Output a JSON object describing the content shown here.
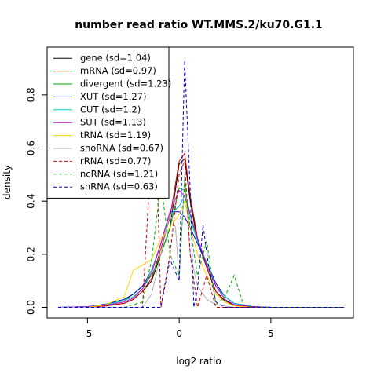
{
  "chart_data": {
    "type": "line",
    "title": "number read ratio WT.MMS.2/ku70.G1.1",
    "xlabel": "log2 ratio",
    "ylabel": "density",
    "xlim": [
      -7.2,
      9.5
    ],
    "ylim": [
      -0.04,
      0.98
    ],
    "x_ticks": [
      -5,
      0,
      5
    ],
    "x_tick_labels": [
      "-5",
      "0",
      "5"
    ],
    "y_ticks": [
      0.0,
      0.2,
      0.4,
      0.6,
      0.8
    ],
    "y_tick_labels": [
      "0.0",
      "0.2",
      "0.4",
      "0.6",
      "0.8"
    ],
    "legend_position": "top-left",
    "series": [
      {
        "name": "gene (sd=1.04)",
        "color": "#000000",
        "dash": "solid",
        "points": [
          [
            -6.6,
            0
          ],
          [
            -5,
            0.001
          ],
          [
            -4,
            0.005
          ],
          [
            -3,
            0.015
          ],
          [
            -2.5,
            0.03
          ],
          [
            -2,
            0.06
          ],
          [
            -1.5,
            0.1
          ],
          [
            -1,
            0.2
          ],
          [
            -0.5,
            0.3
          ],
          [
            0,
            0.54
          ],
          [
            0.3,
            0.56
          ],
          [
            0.6,
            0.4
          ],
          [
            1,
            0.25
          ],
          [
            1.5,
            0.15
          ],
          [
            2,
            0.06
          ],
          [
            2.5,
            0.025
          ],
          [
            3,
            0.01
          ],
          [
            4,
            0.002
          ],
          [
            5,
            0
          ],
          [
            9,
            0
          ]
        ]
      },
      {
        "name": "mRNA (sd=0.97)",
        "color": "#cc0000",
        "dash": "solid",
        "points": [
          [
            -6.6,
            0
          ],
          [
            -5,
            0.001
          ],
          [
            -4,
            0.005
          ],
          [
            -3,
            0.015
          ],
          [
            -2.5,
            0.03
          ],
          [
            -2,
            0.06
          ],
          [
            -1.5,
            0.11
          ],
          [
            -1,
            0.22
          ],
          [
            -0.5,
            0.34
          ],
          [
            0,
            0.55
          ],
          [
            0.3,
            0.58
          ],
          [
            0.6,
            0.42
          ],
          [
            1,
            0.26
          ],
          [
            1.5,
            0.15
          ],
          [
            2,
            0.06
          ],
          [
            2.5,
            0.02
          ],
          [
            3,
            0.008
          ],
          [
            4,
            0.001
          ],
          [
            5,
            0
          ],
          [
            9,
            0
          ]
        ]
      },
      {
        "name": "divergent (sd=1.23)",
        "color": "#00aa00",
        "dash": "solid",
        "points": [
          [
            -6.6,
            0
          ],
          [
            -5,
            0.002
          ],
          [
            -4,
            0.01
          ],
          [
            -3,
            0.025
          ],
          [
            -2.5,
            0.05
          ],
          [
            -2,
            0.08
          ],
          [
            -1.5,
            0.12
          ],
          [
            -1,
            0.2
          ],
          [
            -0.5,
            0.3
          ],
          [
            0,
            0.45
          ],
          [
            0.3,
            0.44
          ],
          [
            0.6,
            0.35
          ],
          [
            1,
            0.25
          ],
          [
            1.5,
            0.16
          ],
          [
            2,
            0.08
          ],
          [
            2.5,
            0.04
          ],
          [
            3,
            0.015
          ],
          [
            4,
            0.003
          ],
          [
            5,
            0
          ],
          [
            9,
            0
          ]
        ]
      },
      {
        "name": "XUT (sd=1.27)",
        "color": "#0000cc",
        "dash": "solid",
        "points": [
          [
            -6.6,
            0
          ],
          [
            -5,
            0.003
          ],
          [
            -4,
            0.012
          ],
          [
            -3,
            0.03
          ],
          [
            -2.5,
            0.05
          ],
          [
            -2,
            0.08
          ],
          [
            -1.5,
            0.14
          ],
          [
            -1,
            0.24
          ],
          [
            -0.5,
            0.36
          ],
          [
            0,
            0.36
          ],
          [
            0.3,
            0.34
          ],
          [
            0.6,
            0.3
          ],
          [
            1,
            0.24
          ],
          [
            1.5,
            0.17
          ],
          [
            2,
            0.09
          ],
          [
            2.5,
            0.04
          ],
          [
            3,
            0.015
          ],
          [
            4,
            0.003
          ],
          [
            5,
            0
          ],
          [
            9,
            0
          ]
        ]
      },
      {
        "name": "CUT (sd=1.2)",
        "color": "#00cccc",
        "dash": "solid",
        "points": [
          [
            -6.6,
            0
          ],
          [
            -5,
            0.003
          ],
          [
            -4,
            0.01
          ],
          [
            -3,
            0.025
          ],
          [
            -2.5,
            0.04
          ],
          [
            -2,
            0.07
          ],
          [
            -1.5,
            0.14
          ],
          [
            -1,
            0.24
          ],
          [
            -0.5,
            0.35
          ],
          [
            0,
            0.38
          ],
          [
            0.3,
            0.42
          ],
          [
            0.6,
            0.33
          ],
          [
            1,
            0.25
          ],
          [
            1.5,
            0.17
          ],
          [
            2,
            0.08
          ],
          [
            2.5,
            0.04
          ],
          [
            3,
            0.015
          ],
          [
            4,
            0.002
          ],
          [
            5,
            0
          ],
          [
            9,
            0
          ]
        ]
      },
      {
        "name": "SUT (sd=1.13)",
        "color": "#cc00cc",
        "dash": "solid",
        "points": [
          [
            -6.6,
            0
          ],
          [
            -5,
            0.002
          ],
          [
            -4,
            0.008
          ],
          [
            -3,
            0.02
          ],
          [
            -2.5,
            0.035
          ],
          [
            -2,
            0.07
          ],
          [
            -1.5,
            0.13
          ],
          [
            -1,
            0.24
          ],
          [
            -0.5,
            0.36
          ],
          [
            0,
            0.44
          ],
          [
            0.3,
            0.42
          ],
          [
            0.6,
            0.35
          ],
          [
            1,
            0.26
          ],
          [
            1.5,
            0.16
          ],
          [
            2,
            0.08
          ],
          [
            2.5,
            0.03
          ],
          [
            3,
            0.01
          ],
          [
            4,
            0.002
          ],
          [
            5,
            0
          ],
          [
            9,
            0
          ]
        ]
      },
      {
        "name": "tRNA (sd=1.19)",
        "color": "#ffd700",
        "dash": "solid",
        "points": [
          [
            -6.6,
            0
          ],
          [
            -5,
            0
          ],
          [
            -4,
            0.01
          ],
          [
            -3,
            0.04
          ],
          [
            -2.5,
            0.14
          ],
          [
            -2,
            0.16
          ],
          [
            -1.5,
            0.18
          ],
          [
            -1,
            0.26
          ],
          [
            -0.5,
            0.3
          ],
          [
            0,
            0.35
          ],
          [
            0.3,
            0.4
          ],
          [
            0.6,
            0.3
          ],
          [
            1,
            0.2
          ],
          [
            1.5,
            0.12
          ],
          [
            2,
            0.05
          ],
          [
            2.5,
            0.02
          ],
          [
            3,
            0.005
          ],
          [
            4,
            0
          ],
          [
            5,
            0
          ],
          [
            9,
            0
          ]
        ]
      },
      {
        "name": "snoRNA (sd=0.67)",
        "color": "#b0b0b0",
        "dash": "solid",
        "points": [
          [
            -6.6,
            0
          ],
          [
            -2,
            0
          ],
          [
            -1.5,
            0.05
          ],
          [
            -1,
            0.2
          ],
          [
            -0.5,
            0.35
          ],
          [
            -0.2,
            0.3
          ],
          [
            0,
            0.1
          ],
          [
            0.3,
            0.5
          ],
          [
            0.6,
            0.2
          ],
          [
            1,
            0.08
          ],
          [
            1.5,
            0.03
          ],
          [
            2,
            0.01
          ],
          [
            3,
            0
          ],
          [
            9,
            0
          ]
        ]
      },
      {
        "name": "rRNA (sd=0.77)",
        "color": "#cc0000",
        "dash": "dashed",
        "points": [
          [
            -6.6,
            0
          ],
          [
            -2,
            0
          ],
          [
            -1.6,
            0.5
          ],
          [
            -1.2,
            0.5
          ],
          [
            -1,
            0
          ],
          [
            -0.5,
            0.2
          ],
          [
            0,
            0.5
          ],
          [
            0.3,
            0.55
          ],
          [
            0.6,
            0.2
          ],
          [
            1,
            0
          ],
          [
            1.5,
            0.12
          ],
          [
            2,
            0
          ],
          [
            9,
            0
          ]
        ]
      },
      {
        "name": "ncRNA (sd=1.21)",
        "color": "#00aa00",
        "dash": "dashed",
        "points": [
          [
            -6.6,
            0
          ],
          [
            -3,
            0
          ],
          [
            -2,
            0.02
          ],
          [
            -1.5,
            0.18
          ],
          [
            -1,
            0.47
          ],
          [
            -0.5,
            0.2
          ],
          [
            0,
            0.12
          ],
          [
            0.3,
            0.48
          ],
          [
            0.6,
            0.3
          ],
          [
            1,
            0.12
          ],
          [
            1.5,
            0.25
          ],
          [
            2,
            0.01
          ],
          [
            2.5,
            0.04
          ],
          [
            3,
            0.12
          ],
          [
            3.5,
            0.01
          ],
          [
            4,
            0
          ],
          [
            9,
            0
          ]
        ]
      },
      {
        "name": "snRNA (sd=0.63)",
        "color": "#0000cc",
        "dash": "dashed",
        "points": [
          [
            -6.6,
            0
          ],
          [
            -1,
            0
          ],
          [
            -0.5,
            0.18
          ],
          [
            0,
            0.1
          ],
          [
            0.3,
            0.93
          ],
          [
            0.6,
            0.44
          ],
          [
            0.8,
            0
          ],
          [
            1,
            0.07
          ],
          [
            1.3,
            0.31
          ],
          [
            1.6,
            0.16
          ],
          [
            2,
            0.02
          ],
          [
            2.5,
            0
          ],
          [
            9,
            0
          ]
        ]
      }
    ]
  }
}
